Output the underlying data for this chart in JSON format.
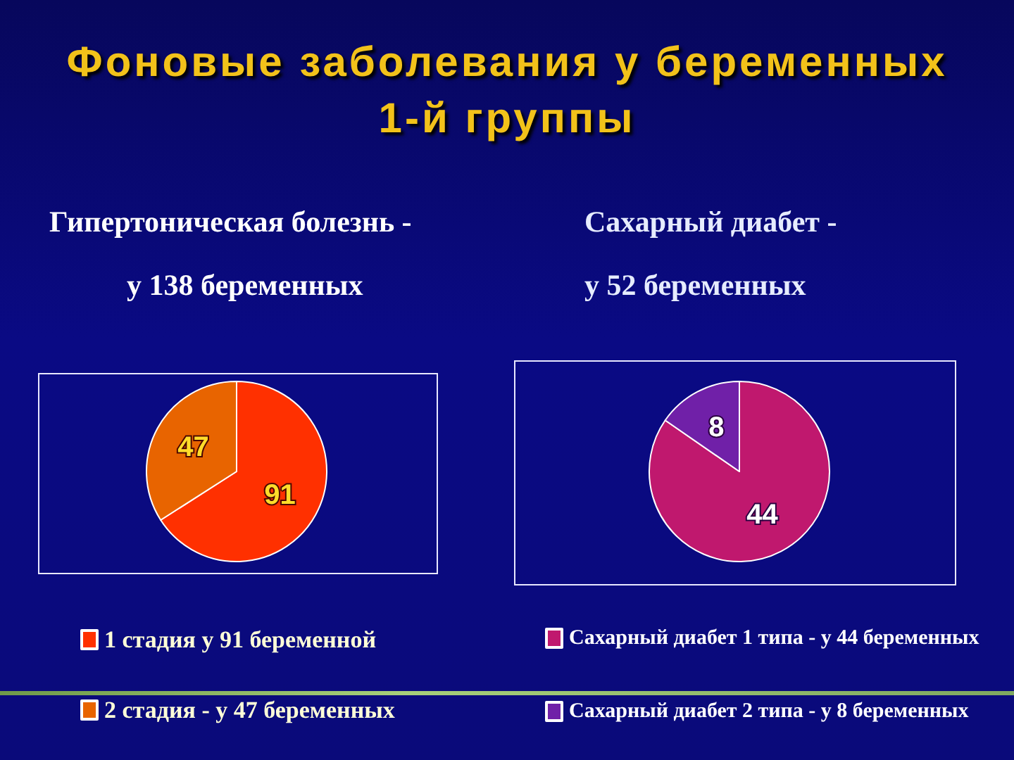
{
  "chart_data": [
    {
      "type": "other",
      "title": "Фоновые заболевания у беременных 1-й группы"
    },
    {
      "type": "pie",
      "title": "Гипертоническая болезнь -",
      "subtitle": "у 138 беременных",
      "categories": [
        "1 стадия у 91 беременной",
        "2 стадия - у 47 беременных"
      ],
      "values": [
        91,
        47
      ],
      "colors": [
        "#ff3000",
        "#e86400"
      ],
      "data_labels": true,
      "legend": "bottom"
    },
    {
      "type": "pie",
      "title": "Сахарный диабет -",
      "subtitle": "у 52 беременных",
      "categories": [
        "Сахарный диабет 1 типа - у 44 беременных",
        "Сахарный диабет 2 типа - у 8 беременных"
      ],
      "values": [
        44,
        8
      ],
      "colors": [
        "#c0186e",
        "#7020a8"
      ],
      "data_labels": true,
      "legend": "bottom"
    }
  ]
}
